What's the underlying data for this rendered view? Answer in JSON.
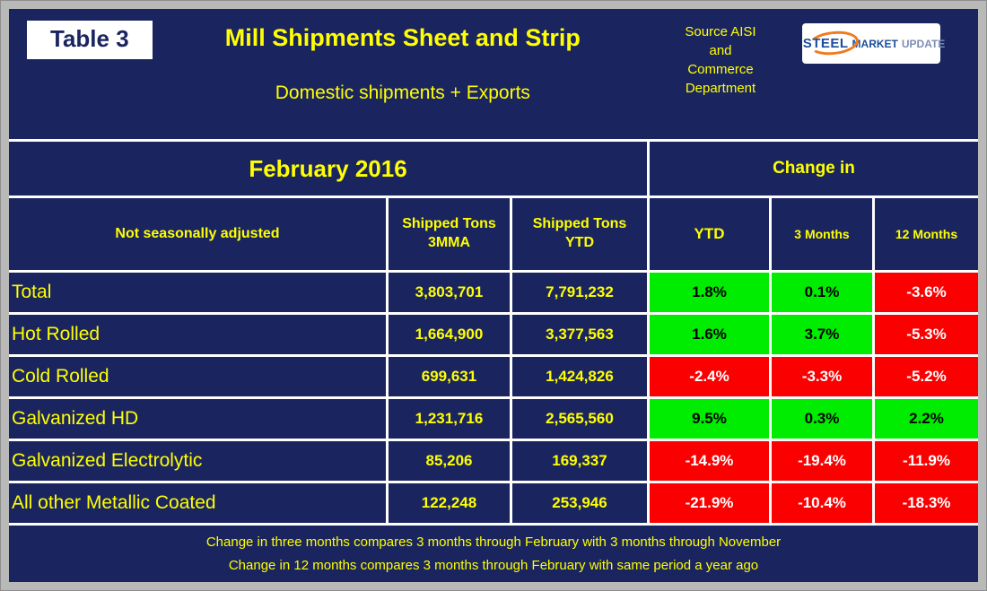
{
  "header": {
    "table_label": "Table 3",
    "title": "Mill Shipments Sheet and Strip",
    "subtitle": "Domestic shipments + Exports",
    "source_lines": [
      "Source AISI",
      "and",
      "Commerce",
      "Department"
    ],
    "logo": {
      "part1": "STEEL",
      "part2": "MARKET",
      "part3": "UPDATE"
    }
  },
  "table": {
    "period_header": "February 2016",
    "change_header": "Change in",
    "col_headers": {
      "label": "Not seasonally adjusted",
      "tons_3mma": "Shipped Tons 3MMA",
      "tons_ytd": "Shipped Tons YTD",
      "ytd": "YTD",
      "three_months": "3 Months",
      "twelve_months": "12 Months"
    },
    "rows": [
      {
        "label": "Total",
        "tons_3mma": "3,803,701",
        "tons_ytd": "7,791,232",
        "ytd": {
          "value": "1.8%",
          "color": "green"
        },
        "three_months": {
          "value": "0.1%",
          "color": "green"
        },
        "twelve_months": {
          "value": "-3.6%",
          "color": "red"
        }
      },
      {
        "label": "Hot Rolled",
        "tons_3mma": "1,664,900",
        "tons_ytd": "3,377,563",
        "ytd": {
          "value": "1.6%",
          "color": "green"
        },
        "three_months": {
          "value": "3.7%",
          "color": "green"
        },
        "twelve_months": {
          "value": "-5.3%",
          "color": "red"
        }
      },
      {
        "label": "Cold Rolled",
        "tons_3mma": "699,631",
        "tons_ytd": "1,424,826",
        "ytd": {
          "value": "-2.4%",
          "color": "red"
        },
        "three_months": {
          "value": "-3.3%",
          "color": "red"
        },
        "twelve_months": {
          "value": "-5.2%",
          "color": "red"
        }
      },
      {
        "label": "Galvanized HD",
        "tons_3mma": "1,231,716",
        "tons_ytd": "2,565,560",
        "ytd": {
          "value": "9.5%",
          "color": "green"
        },
        "three_months": {
          "value": "0.3%",
          "color": "green"
        },
        "twelve_months": {
          "value": "2.2%",
          "color": "green"
        }
      },
      {
        "label": "Galvanized Electrolytic",
        "tons_3mma": "85,206",
        "tons_ytd": "169,337",
        "ytd": {
          "value": "-14.9%",
          "color": "red"
        },
        "three_months": {
          "value": "-19.4%",
          "color": "red"
        },
        "twelve_months": {
          "value": "-11.9%",
          "color": "red"
        }
      },
      {
        "label": "All other Metallic Coated",
        "tons_3mma": "122,248",
        "tons_ytd": "253,946",
        "ytd": {
          "value": "-21.9%",
          "color": "red"
        },
        "three_months": {
          "value": "-10.4%",
          "color": "red"
        },
        "twelve_months": {
          "value": "-18.3%",
          "color": "red"
        }
      }
    ]
  },
  "footnotes": [
    "Change in three months compares 3 months through February with 3 months through November",
    "Change in 12 months compares 3 months through February with same period a year ago"
  ],
  "colors": {
    "background": "#1a2560",
    "text": "#ffff00",
    "positive": "#00ec00",
    "negative": "#fb0000",
    "gridline": "#ffffff"
  },
  "chart_data": {
    "type": "table",
    "title": "Table 3 — Mill Shipments Sheet and Strip (Domestic shipments + Exports), February 2016",
    "source": "Source AISI and Commerce Department",
    "columns": [
      "Not seasonally adjusted",
      "Shipped Tons 3MMA",
      "Shipped Tons YTD",
      "Change in YTD",
      "Change in 3 Months",
      "Change in 12 Months"
    ],
    "rows": [
      [
        "Total",
        3803701,
        7791232,
        "1.8%",
        "0.1%",
        "-3.6%"
      ],
      [
        "Hot Rolled",
        1664900,
        3377563,
        "1.6%",
        "3.7%",
        "-5.3%"
      ],
      [
        "Cold Rolled",
        699631,
        1424826,
        "-2.4%",
        "-3.3%",
        "-5.2%"
      ],
      [
        "Galvanized HD",
        1231716,
        2565560,
        "9.5%",
        "0.3%",
        "2.2%"
      ],
      [
        "Galvanized Electrolytic",
        85206,
        169337,
        "-14.9%",
        "-19.4%",
        "-11.9%"
      ],
      [
        "All other Metallic Coated",
        122248,
        253946,
        "-21.9%",
        "-10.4%",
        "-18.3%"
      ]
    ],
    "cell_color_coding": "green = positive change, red = negative change"
  }
}
